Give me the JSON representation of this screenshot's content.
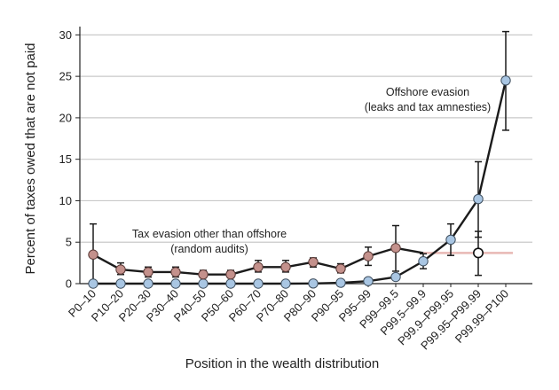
{
  "chart_data": {
    "type": "line",
    "xlabel": "Position in the wealth distribution",
    "ylabel": "Percent of taxes owed that are not paid",
    "ylim": [
      0,
      31
    ],
    "yticks": [
      0,
      5,
      10,
      15,
      20,
      25,
      30
    ],
    "grid": "horizontal",
    "categories": [
      "P0–10",
      "P10–20",
      "P20–30",
      "P30–40",
      "P40–50",
      "P50–60",
      "P60–70",
      "P70–80",
      "P80–90",
      "P90–95",
      "P95–99",
      "P99–99.5",
      "P99.5–99.9",
      "P99.9–P99.95",
      "P99.95–P99.99",
      "P99.99–P100"
    ],
    "series": [
      {
        "key": "random_audits",
        "color": "#c4918c",
        "values": [
          3.5,
          1.7,
          1.4,
          1.4,
          1.1,
          1.1,
          2.0,
          2.0,
          2.6,
          1.8,
          3.3,
          4.3,
          3.7,
          null,
          3.7,
          null
        ],
        "err_low": [
          0.0,
          1.1,
          0.8,
          0.8,
          0.7,
          0.7,
          1.4,
          1.4,
          2.0,
          1.3,
          2.2,
          1.5,
          null,
          null,
          1.0,
          null
        ],
        "err_high": [
          7.2,
          2.5,
          2.0,
          2.0,
          1.6,
          1.6,
          2.8,
          2.8,
          3.1,
          2.4,
          4.4,
          7.0,
          null,
          null,
          6.3,
          null
        ]
      },
      {
        "key": "offshore",
        "color": "#a9c6e3",
        "values": [
          0.0,
          0.0,
          0.0,
          0.0,
          0.0,
          0.0,
          0.0,
          0.0,
          0.02,
          0.1,
          0.3,
          0.8,
          2.7,
          5.3,
          10.2,
          24.5
        ],
        "err_low": [
          null,
          null,
          null,
          null,
          null,
          null,
          null,
          null,
          null,
          null,
          null,
          null,
          1.8,
          3.4,
          5.6,
          18.5
        ],
        "err_high": [
          null,
          null,
          null,
          null,
          null,
          null,
          null,
          null,
          null,
          null,
          null,
          null,
          3.6,
          7.2,
          14.7,
          30.4
        ]
      }
    ],
    "annotations": [
      {
        "key": "offshore_label",
        "lines": [
          "Offshore evasion",
          "(leaks and tax amnesties)"
        ]
      },
      {
        "key": "audit_label",
        "lines": [
          "Tax evasion other than offshore",
          "(random audits)"
        ]
      }
    ]
  }
}
